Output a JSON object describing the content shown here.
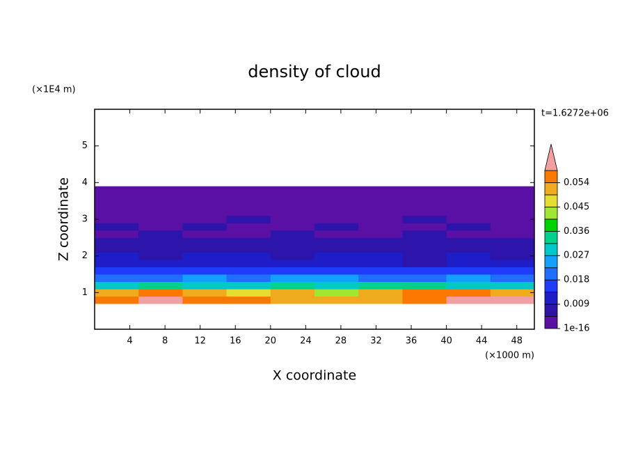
{
  "chart_data": {
    "type": "contour",
    "title": "density of cloud",
    "x_label": "X coordinate",
    "y_label": "Z coordinate",
    "x_unit": "(×1000 m)",
    "y_unit": "(×1E4 m)",
    "time_label": "t=1.6272e+06",
    "xlim": [
      0,
      50
    ],
    "xticks": [
      4,
      8,
      12,
      16,
      20,
      24,
      28,
      32,
      36,
      40,
      44,
      48
    ],
    "ylim": [
      0,
      6
    ],
    "yticks": [
      1,
      2,
      3,
      4,
      5
    ],
    "field": {
      "x_edges": [
        0,
        5,
        10,
        15,
        20,
        25,
        30,
        35,
        40,
        45,
        50
      ],
      "z_edges": [
        0.7,
        0.9,
        1.1,
        1.3,
        1.5,
        1.7,
        1.9,
        2.1,
        2.3,
        2.5,
        2.7,
        2.9,
        3.1,
        3.3,
        3.5,
        3.7,
        3.9
      ],
      "values": [
        [
          0.057,
          0.06,
          0.058,
          0.055,
          0.05,
          0.052,
          0.054,
          0.056,
          0.06,
          0.06
        ],
        [
          0.05,
          0.056,
          0.052,
          0.047,
          0.05,
          0.045,
          0.05,
          0.058,
          0.056,
          0.054
        ],
        [
          0.03,
          0.032,
          0.028,
          0.03,
          0.034,
          0.03,
          0.032,
          0.036,
          0.03,
          0.028
        ],
        [
          0.022,
          0.02,
          0.024,
          0.022,
          0.026,
          0.024,
          0.02,
          0.022,
          0.024,
          0.02
        ],
        [
          0.016,
          0.014,
          0.017,
          0.015,
          0.018,
          0.016,
          0.014,
          0.016,
          0.015,
          0.014
        ],
        [
          0.012,
          0.011,
          0.013,
          0.012,
          0.01,
          0.012,
          0.011,
          0.008,
          0.012,
          0.011
        ],
        [
          0.01,
          0.009,
          0.011,
          0.01,
          0.009,
          0.01,
          0.01,
          0.009,
          0.01,
          0.009
        ],
        [
          0.006,
          0.007,
          0.006,
          0.006,
          0.007,
          0.006,
          0.006,
          0.007,
          0.006,
          0.006
        ],
        [
          0.005,
          0.005,
          0.006,
          0.005,
          0.005,
          0.005,
          0.006,
          0.005,
          0.005,
          0.005
        ],
        [
          0.004,
          0.005,
          0.004,
          0.004,
          0.005,
          0.004,
          0.004,
          0.005,
          0.004,
          0.004
        ],
        [
          0.005,
          0.004,
          0.005,
          0.004,
          0.004,
          0.005,
          0.004,
          0.004,
          0.005,
          0.004
        ],
        [
          0.004,
          0.004,
          0.004,
          0.005,
          0.004,
          0.004,
          0.004,
          0.005,
          0.004,
          0.004
        ],
        [
          0.002,
          0.002,
          0.002,
          0.002,
          0.002,
          0.002,
          0.002,
          0.002,
          0.002,
          0.002
        ],
        [
          0.002,
          0.002,
          0.002,
          0.002,
          0.002,
          0.002,
          0.002,
          0.002,
          0.002,
          0.002
        ],
        [
          0.002,
          0.002,
          0.002,
          0.002,
          0.002,
          0.002,
          0.002,
          0.002,
          0.002,
          0.002
        ],
        [
          0.002,
          0.002,
          0.002,
          0.002,
          0.002,
          0.002,
          0.002,
          0.002,
          0.002,
          0.002
        ]
      ]
    },
    "colorbar": {
      "lim": [
        1e-16,
        0.0585
      ],
      "ticks": [
        1e-16,
        0.009,
        0.018,
        0.027,
        0.036,
        0.045,
        0.054
      ],
      "colors": [
        "#5a0fa5",
        "#2d14aa",
        "#1e1ec8",
        "#1e3cfa",
        "#1e6eff",
        "#14a0ff",
        "#00c8c8",
        "#00d28c",
        "#00d200",
        "#a0e632",
        "#e6dc32",
        "#f0aa1e",
        "#fa7800"
      ],
      "over_color": "#f0a0a0"
    }
  }
}
